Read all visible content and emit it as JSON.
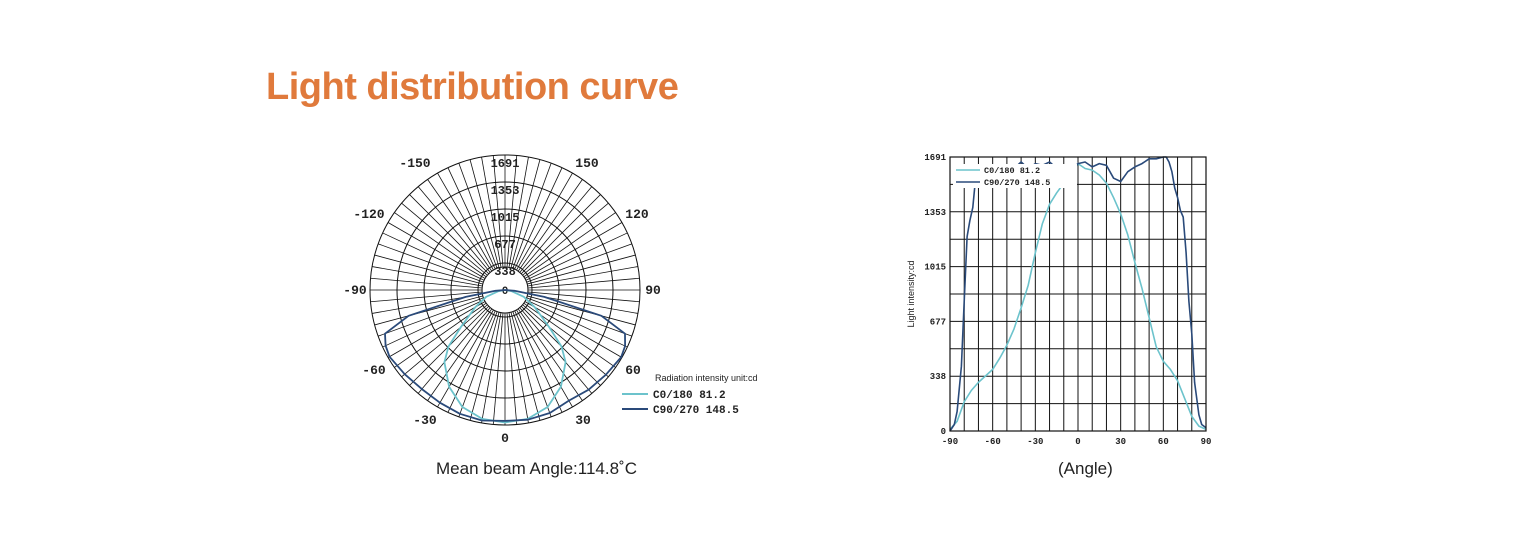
{
  "page": {
    "title": "Light distribution curve",
    "title_color": "#e07a3c"
  },
  "colors": {
    "c0": "#6cc3cc",
    "c90": "#2a4a7a",
    "grid": "#111111"
  },
  "chart_data": [
    {
      "type": "polar",
      "rings": [
        "338",
        "677",
        "1015",
        "1353",
        "1691"
      ],
      "r_max": 1691,
      "angle_labels": [
        "-150",
        "150",
        "-120",
        "120",
        "-90",
        "90",
        "-60",
        "60",
        "-30",
        "30",
        "0"
      ],
      "center_label": "0",
      "legend_title": "Radiation intensity unit:cd",
      "series": [
        {
          "name": "C0/180  81.2",
          "angles": [
            -90,
            -80,
            -70,
            -60,
            -50,
            -45,
            -40,
            -30,
            -20,
            -10,
            0,
            10,
            20,
            30,
            40,
            45,
            50,
            60,
            70,
            80,
            90
          ],
          "values": [
            0,
            80,
            250,
            430,
            720,
            1000,
            1180,
            1400,
            1560,
            1640,
            1660,
            1640,
            1560,
            1400,
            1180,
            1000,
            720,
            430,
            250,
            80,
            0
          ]
        },
        {
          "name": "C90/270  148.5",
          "angles": [
            -90,
            -85,
            -80,
            -75,
            -70,
            -65,
            -60,
            -50,
            -40,
            -30,
            -20,
            -10,
            0,
            10,
            20,
            30,
            40,
            50,
            60,
            65,
            70,
            75,
            80,
            85,
            90
          ],
          "values": [
            0,
            120,
            500,
            1250,
            1600,
            1650,
            1670,
            1640,
            1620,
            1630,
            1650,
            1660,
            1640,
            1650,
            1640,
            1600,
            1630,
            1650,
            1680,
            1660,
            1600,
            1250,
            500,
            120,
            0
          ]
        }
      ],
      "caption": "Mean beam Angle:114.8˚C"
    },
    {
      "type": "line",
      "yticks": [
        "0",
        "338",
        "677",
        "1015",
        "1353",
        "1691"
      ],
      "xticks": [
        "-90",
        "-60",
        "-30",
        "0",
        "30",
        "60",
        "90"
      ],
      "xlim": [
        -90,
        90
      ],
      "ylim": [
        0,
        1691
      ],
      "ylabel": "Light intensity:cd",
      "xlabel": "(Angle)",
      "series": [
        {
          "name": "C0/180  81.2",
          "x": [
            -90,
            -85,
            -80,
            -75,
            -70,
            -65,
            -60,
            -55,
            -50,
            -45,
            -40,
            -35,
            -30,
            -25,
            -20,
            -15,
            -10,
            -5,
            0,
            5,
            10,
            15,
            20,
            25,
            30,
            35,
            40,
            45,
            50,
            55,
            60,
            65,
            70,
            75,
            80,
            85,
            90
          ],
          "y": [
            10,
            60,
            180,
            250,
            300,
            340,
            380,
            450,
            530,
            630,
            760,
            900,
            1100,
            1280,
            1400,
            1470,
            1530,
            1590,
            1650,
            1620,
            1610,
            1580,
            1530,
            1440,
            1340,
            1210,
            1040,
            880,
            700,
            520,
            430,
            380,
            310,
            200,
            90,
            30,
            10
          ]
        },
        {
          "name": "C90/270  148.5",
          "x": [
            -90,
            -87,
            -85,
            -82,
            -80,
            -78,
            -76,
            -74,
            -72,
            -70,
            -68,
            -66,
            -64,
            -62,
            -60,
            -55,
            -50,
            -45,
            -40,
            -35,
            -30,
            -25,
            -20,
            -15,
            -10,
            -5,
            0,
            5,
            10,
            15,
            20,
            25,
            30,
            35,
            40,
            45,
            50,
            55,
            60,
            62,
            64,
            66,
            68,
            70,
            72,
            74,
            76,
            78,
            80,
            82,
            85,
            87,
            90
          ],
          "y": [
            0,
            40,
            120,
            400,
            800,
            1200,
            1300,
            1380,
            1560,
            1640,
            1600,
            1570,
            1580,
            1640,
            1620,
            1600,
            1640,
            1620,
            1660,
            1620,
            1650,
            1640,
            1660,
            1620,
            1640,
            1610,
            1650,
            1660,
            1630,
            1650,
            1640,
            1560,
            1540,
            1600,
            1630,
            1650,
            1680,
            1680,
            1691,
            1691,
            1660,
            1600,
            1500,
            1440,
            1360,
            1320,
            1100,
            800,
            600,
            300,
            100,
            40,
            20
          ]
        }
      ]
    }
  ]
}
